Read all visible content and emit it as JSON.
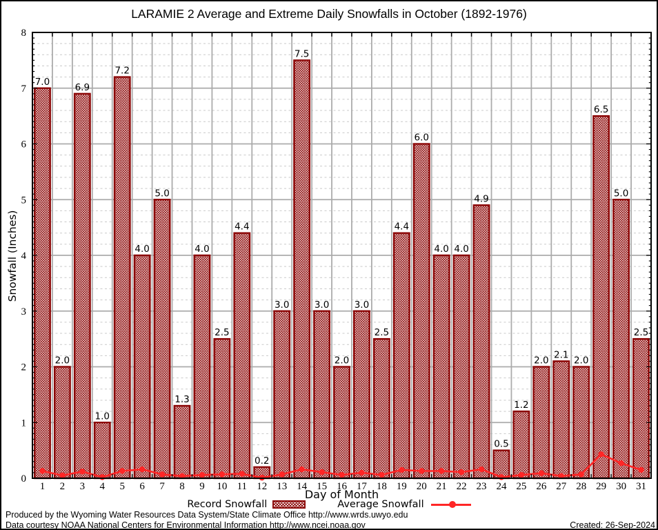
{
  "title": "LARAMIE 2 Average and Extreme Daily Snowfalls in October (1892-1976)",
  "chart_data": {
    "type": "bar",
    "title": "LARAMIE 2 Average and Extreme Daily Snowfalls in October (1892-1976)",
    "xlabel": "Day of Month",
    "ylabel": "Snowfall (Inches)",
    "ylim": [
      0,
      8
    ],
    "y_major_step": 1,
    "y_minor_step": 0.2,
    "grid": true,
    "legend_position": "bottom",
    "categories": [
      1,
      2,
      3,
      4,
      5,
      6,
      7,
      8,
      9,
      10,
      11,
      12,
      13,
      14,
      15,
      16,
      17,
      18,
      19,
      20,
      21,
      22,
      23,
      24,
      25,
      26,
      27,
      28,
      29,
      30,
      31
    ],
    "series": [
      {
        "name": "Record Snowfall",
        "type": "bar",
        "values": [
          7.0,
          2.0,
          6.9,
          1.0,
          7.2,
          4.0,
          5.0,
          1.3,
          4.0,
          2.5,
          4.4,
          0.2,
          3.0,
          7.5,
          3.0,
          2.0,
          3.0,
          2.5,
          4.4,
          6.0,
          4.0,
          4.0,
          4.9,
          0.5,
          1.2,
          2.0,
          2.1,
          2.0,
          6.5,
          5.0,
          2.5
        ],
        "labels": [
          "7.0",
          "2.0",
          "6.9",
          "1.0",
          "7.2",
          "4.0",
          "5.0",
          "1.3",
          "4.0",
          "2.5",
          "4.4",
          "0.2",
          "3.0",
          "7.5",
          "3.0",
          "2.0",
          "3.0",
          "2.5",
          "4.4",
          "6.0",
          "4.0",
          "4.0",
          "4.9",
          "0.5",
          "1.2",
          "2.0",
          "2.1",
          "2.0",
          "6.5",
          "5.0",
          "2.5"
        ]
      },
      {
        "name": "Average Snowfall",
        "type": "line",
        "values": [
          0.13,
          0.05,
          0.12,
          0.02,
          0.13,
          0.16,
          0.07,
          0.04,
          0.06,
          0.07,
          0.08,
          0.01,
          0.07,
          0.16,
          0.11,
          0.06,
          0.1,
          0.06,
          0.15,
          0.13,
          0.13,
          0.11,
          0.16,
          0.02,
          0.06,
          0.09,
          0.04,
          0.07,
          0.43,
          0.27,
          0.15
        ]
      }
    ]
  },
  "legend": {
    "record_label": "Record Snowfall",
    "average_label": "Average Snowfall"
  },
  "footer": {
    "line1": "Produced by the Wyoming Water Resources Data System/State Climate Office http://www.wrds.uwyo.edu",
    "line2": "Data courtesy NOAA National Centers for Environmental Information http://www.ncei.noaa.gov",
    "created": "Created: 26-Sep-2024"
  },
  "colors": {
    "bar_border": "#8b0505",
    "bar_hatch": "#8b0505",
    "avg_line": "#ff2626",
    "grid_major": "#ababab",
    "grid_minor": "#c9c9c9",
    "axis": "#000000",
    "text": "#000000"
  }
}
